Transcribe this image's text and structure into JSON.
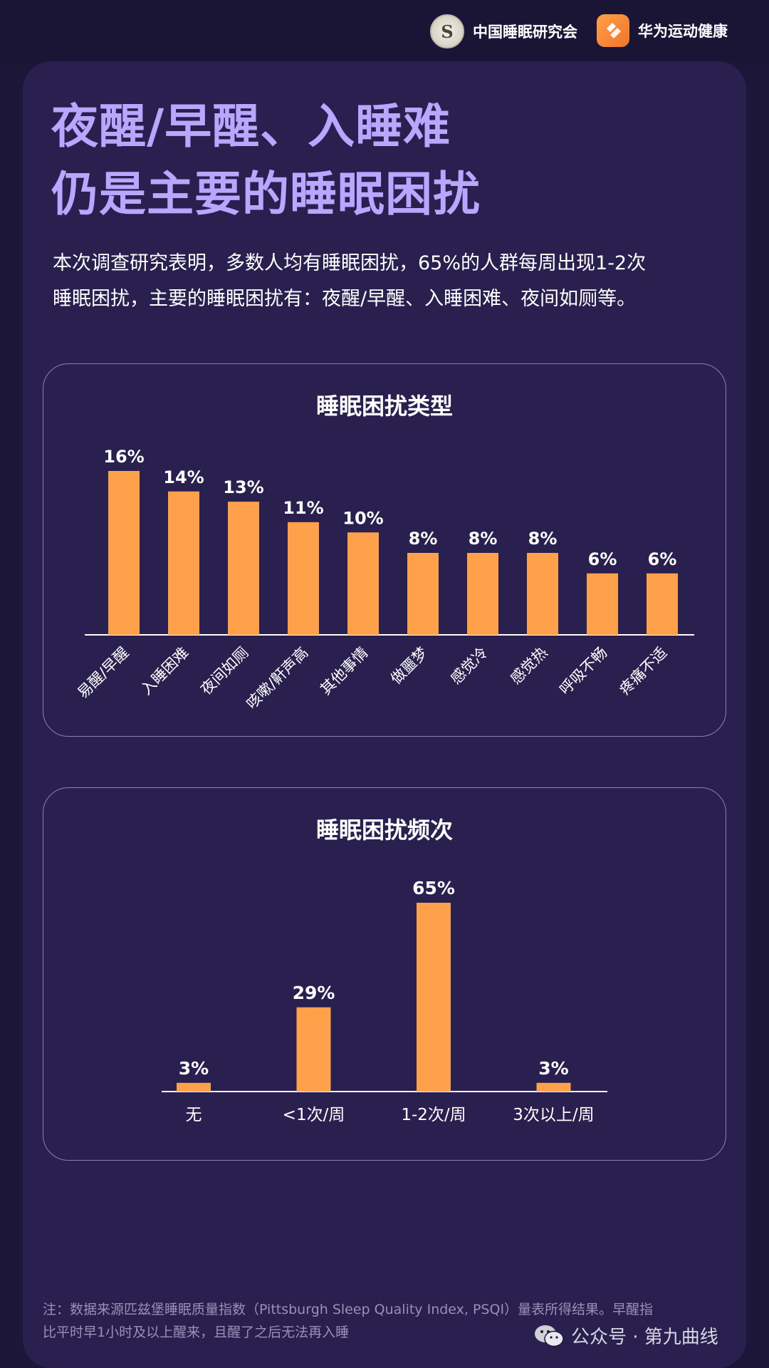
{
  "header": {
    "logo1": {
      "icon": "cssr-seal-icon",
      "text": "中国睡眠研究会"
    },
    "logo2": {
      "icon": "huawei-health-icon",
      "text": "华为运动健康"
    }
  },
  "title": {
    "line1": "夜醒/早醒、入睡难",
    "line2": "仍是主要的睡眠困扰"
  },
  "intro": {
    "line1": "本次调查研究表明，多数人均有睡眠困扰，65%的人群每周出现1-2次",
    "line2": "睡眠困扰，主要的睡眠困扰有：夜醒/早醒、入睡困难、夜间如厕等。"
  },
  "chart_data": [
    {
      "type": "bar",
      "title": "睡眠困扰类型",
      "categories": [
        "易醒/早醒",
        "入睡困难",
        "夜间如厕",
        "咳嗽/鼾声高",
        "其他事情",
        "做噩梦",
        "感觉冷",
        "感觉热",
        "呼吸不畅",
        "疼痛不适"
      ],
      "values": [
        16,
        14,
        13,
        11,
        10,
        8,
        8,
        8,
        6,
        6
      ],
      "value_labels": [
        "16%",
        "14%",
        "13%",
        "11%",
        "10%",
        "8%",
        "8%",
        "8%",
        "6%",
        "6%"
      ],
      "unit": "%",
      "ylim": [
        0,
        16
      ],
      "grid": false,
      "bar_color": "#ffa04a"
    },
    {
      "type": "bar",
      "title": "睡眠困扰频次",
      "categories": [
        "无",
        "<1次/周",
        "1-2次/周",
        "3次以上/周"
      ],
      "values": [
        3,
        29,
        65,
        3
      ],
      "value_labels": [
        "3%",
        "29%",
        "65%",
        "3%"
      ],
      "unit": "%",
      "ylim": [
        0,
        65
      ],
      "grid": false,
      "bar_color": "#ffa04a"
    }
  ],
  "footnote": {
    "line1": "注：数据来源匹兹堡睡眠质量指数（Pittsburgh Sleep Quality Index, PSQI）量表所得结果。早醒指",
    "line2": "比平时早1小时及以上醒来，且醒了之后无法再入睡"
  },
  "watermark": {
    "icon": "wechat-icon",
    "text": "公众号 · 第九曲线"
  },
  "colors": {
    "background": "#1c1738",
    "card": "#2a2050",
    "title": "#b8a6ff",
    "bar": "#ffa04a",
    "panel_border": "#8a7fb8"
  }
}
